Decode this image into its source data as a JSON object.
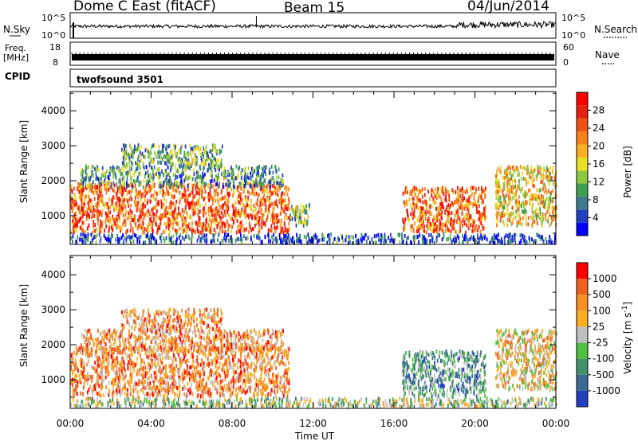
{
  "header": {
    "station": "Dome C East (fitACF)",
    "beam": "Beam 15",
    "date": "04/Jun/2014"
  },
  "strips": {
    "nsky": {
      "label": "N.Sky",
      "top_tick": "10^5",
      "bottom_tick": "10^0"
    },
    "nsearch": {
      "label": "N.Search",
      "top_tick": "10^5",
      "bottom_tick": "10^0"
    },
    "freq": {
      "label_top": "Freq.",
      "label_unit": "[MHz]",
      "top_tick": "18",
      "bottom_tick": "8"
    },
    "nave": {
      "label": "Nave",
      "top_tick": "60",
      "bottom_tick": "0"
    },
    "cpid": {
      "label": "CPID",
      "value": "twofsound 3501"
    }
  },
  "chart_data": [
    {
      "type": "heatmap",
      "name": "power",
      "xlabel": "",
      "ylabel": "Slant Range [km]",
      "x_ticks": [
        "00:00",
        "04:00",
        "08:00",
        "12:00",
        "16:00",
        "20:00",
        "00:00"
      ],
      "x_range_hours": [
        0,
        24
      ],
      "y_ticks": [
        1000,
        2000,
        3000,
        4000
      ],
      "ylim": [
        180,
        4550
      ],
      "colorbar": {
        "label": "Power [dB]",
        "ticks": [
          4,
          8,
          12,
          16,
          20,
          24,
          28
        ],
        "range": [
          0,
          32
        ],
        "colors": [
          "#0000ff",
          "#2040c0",
          "#3c7a8c",
          "#40a050",
          "#90c840",
          "#e8e020",
          "#f8b020",
          "#f88018",
          "#f05010",
          "#e82010",
          "#ff0000"
        ]
      },
      "regions": [
        {
          "t0": 0.0,
          "t1": 10.8,
          "r0": 500,
          "r1": 1900,
          "level": 0.75
        },
        {
          "t0": 0.5,
          "t1": 10.5,
          "r0": 1800,
          "r1": 2400,
          "level": 0.3
        },
        {
          "t0": 2.5,
          "t1": 7.5,
          "r0": 2400,
          "r1": 3000,
          "level": 0.35
        },
        {
          "t0": 10.8,
          "t1": 11.8,
          "r0": 700,
          "r1": 1300,
          "level": 0.4
        },
        {
          "t0": 16.4,
          "t1": 20.5,
          "r0": 500,
          "r1": 1800,
          "level": 0.75
        },
        {
          "t0": 21.0,
          "t1": 24.0,
          "r0": 700,
          "r1": 2400,
          "level": 0.55
        },
        {
          "t0": 0.0,
          "t1": 24.0,
          "r0": 200,
          "r1": 450,
          "level": 0.15
        }
      ]
    },
    {
      "type": "heatmap",
      "name": "velocity",
      "xlabel": "Time UT",
      "ylabel": "Slant Range [km]",
      "x_ticks": [
        "00:00",
        "04:00",
        "08:00",
        "12:00",
        "16:00",
        "20:00",
        "00:00"
      ],
      "x_range_hours": [
        0,
        24
      ],
      "y_ticks": [
        1000,
        2000,
        3000,
        4000
      ],
      "ylim": [
        180,
        4550
      ],
      "colorbar": {
        "label": "Velocity [m s^-1]",
        "ticks": [
          "1000",
          "500",
          "100",
          "25",
          "-25",
          "-100",
          "-500",
          "-1000"
        ],
        "colors": [
          "#2040c0",
          "#3c6a90",
          "#40906c",
          "#50c040",
          "#c0c0c0",
          "#f8b020",
          "#f89020",
          "#f06020",
          "#ff0000"
        ]
      },
      "regions": [
        {
          "t0": 0.0,
          "t1": 10.8,
          "r0": 500,
          "r1": 1900,
          "level": 0.72
        },
        {
          "t0": 0.5,
          "t1": 10.5,
          "r0": 1800,
          "r1": 2400,
          "level": 0.7
        },
        {
          "t0": 2.5,
          "t1": 7.5,
          "r0": 2400,
          "r1": 3000,
          "level": 0.7
        },
        {
          "t0": 16.4,
          "t1": 20.5,
          "r0": 500,
          "r1": 1800,
          "level": 0.3
        },
        {
          "t0": 21.0,
          "t1": 24.0,
          "r0": 700,
          "r1": 2400,
          "level": 0.6
        },
        {
          "t0": 0.0,
          "t1": 24.0,
          "r0": 200,
          "r1": 450,
          "level": 0.45
        }
      ]
    }
  ]
}
